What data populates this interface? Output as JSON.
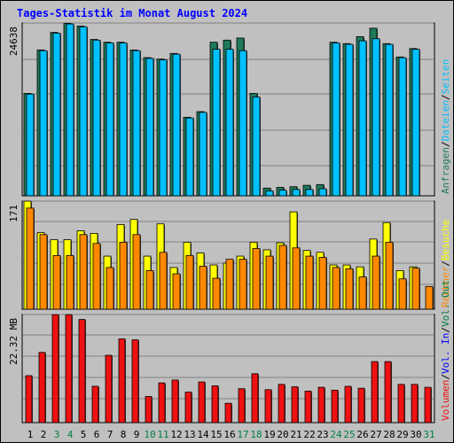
{
  "title": "Tages-Statistik im Monat August 2024",
  "colors": {
    "background": "#c0c0c0",
    "grid": "#808080",
    "anfragen": "#1e7a5a",
    "dateien": "#00c0ff",
    "seiten": "#00c0ff",
    "besuche": "#ffff00",
    "rechner": "#ff8800",
    "volumen": "#ee1111",
    "weekday_label": "#000000",
    "weekend_label": "#008040"
  },
  "chart_data": [
    {
      "type": "bar",
      "title": "",
      "ylabel": "24638",
      "ylim": [
        0,
        24638
      ],
      "grid": true,
      "categories": [
        "1",
        "2",
        "3",
        "4",
        "5",
        "6",
        "7",
        "8",
        "9",
        "10",
        "11",
        "12",
        "13",
        "14",
        "15",
        "16",
        "17",
        "18",
        "19",
        "20",
        "21",
        "22",
        "23",
        "24",
        "25",
        "26",
        "27",
        "28",
        "29",
        "30",
        "31"
      ],
      "weekend_days": [
        "3",
        "4",
        "10",
        "11",
        "17",
        "18",
        "24",
        "25",
        "31"
      ],
      "series": [
        {
          "name": "Anfragen",
          "values": [
            14600,
            20800,
            23300,
            24600,
            24200,
            22300,
            21900,
            21900,
            20800,
            19700,
            19500,
            20300,
            11200,
            12000,
            21900,
            22200,
            22500,
            14600,
            1100,
            1200,
            1300,
            1500,
            1600,
            21900,
            21700,
            22700,
            23900,
            21700,
            19800,
            21000,
            0
          ]
        },
        {
          "name": "Dateien",
          "values": [
            14500,
            20700,
            23200,
            24500,
            24100,
            22200,
            21800,
            21800,
            20700,
            19600,
            19400,
            20200,
            11100,
            11900,
            20900,
            20900,
            20700,
            14100,
            700,
            800,
            900,
            900,
            1000,
            21800,
            21600,
            22100,
            22400,
            21600,
            19700,
            20900,
            0
          ]
        }
      ],
      "right_labels": [
        "Anfragen",
        "Dateien",
        "Seiten"
      ]
    },
    {
      "type": "bar",
      "title": "",
      "ylabel": "171",
      "ylim": [
        0,
        171
      ],
      "grid": true,
      "categories": [
        "1",
        "2",
        "3",
        "4",
        "5",
        "6",
        "7",
        "8",
        "9",
        "10",
        "11",
        "12",
        "13",
        "14",
        "15",
        "16",
        "17",
        "18",
        "19",
        "20",
        "21",
        "22",
        "23",
        "24",
        "25",
        "26",
        "27",
        "28",
        "29",
        "30",
        "31"
      ],
      "series": [
        {
          "name": "Besuche",
          "values": [
            171,
            121,
            110,
            110,
            124,
            120,
            84,
            134,
            142,
            84,
            135,
            66,
            106,
            89,
            70,
            73,
            84,
            106,
            94,
            105,
            154,
            93,
            90,
            70,
            70,
            67,
            111,
            137,
            61,
            67,
            0
          ]
        },
        {
          "name": "Rechner",
          "values": [
            160,
            118,
            85,
            85,
            118,
            104,
            66,
            106,
            118,
            61,
            90,
            56,
            85,
            68,
            49,
            79,
            79,
            96,
            84,
            101,
            97,
            84,
            82,
            66,
            64,
            51,
            84,
            106,
            48,
            65,
            36
          ]
        }
      ],
      "right_labels": [
        "Rechner",
        "Besuche"
      ]
    },
    {
      "type": "bar",
      "title": "",
      "ylabel": "22.32 MB",
      "ylim": [
        0,
        22.32
      ],
      "grid": true,
      "categories": [
        "1",
        "2",
        "3",
        "4",
        "5",
        "6",
        "7",
        "8",
        "9",
        "10",
        "11",
        "12",
        "13",
        "14",
        "15",
        "16",
        "17",
        "18",
        "19",
        "20",
        "21",
        "22",
        "23",
        "24",
        "25",
        "26",
        "27",
        "28",
        "29",
        "30",
        "31"
      ],
      "series": [
        {
          "name": "Volumen",
          "values": [
            9.7,
            14.5,
            22.3,
            22.3,
            21.3,
            7.5,
            13.9,
            17.3,
            17.1,
            5.4,
            8.2,
            8.8,
            6.3,
            8.4,
            7.6,
            4.0,
            7.0,
            10.1,
            6.8,
            7.9,
            7.4,
            6.5,
            7.3,
            6.7,
            7.5,
            7.1,
            12.6,
            12.6,
            7.9,
            7.9,
            7.3
          ]
        }
      ],
      "right_labels": [
        "Volumen",
        "Vol. In",
        "Vol. Out"
      ]
    }
  ]
}
